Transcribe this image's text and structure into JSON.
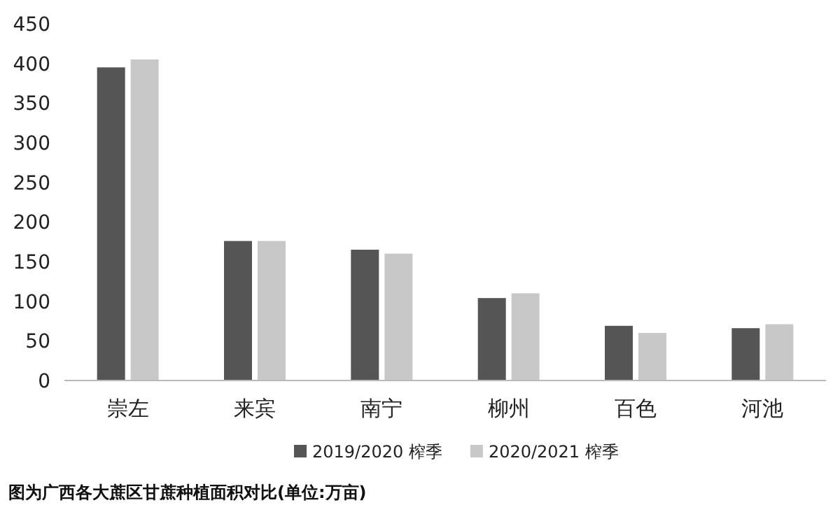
{
  "chart_data": {
    "type": "bar",
    "categories": [
      "崇左",
      "来宾",
      "南宁",
      "柳州",
      "百色",
      "河池"
    ],
    "series": [
      {
        "name": "2019/2020 榨季",
        "color": "#555555",
        "values": [
          395,
          176,
          165,
          104,
          69,
          66
        ]
      },
      {
        "name": "2020/2021 榨季",
        "color": "#c8c8c8",
        "values": [
          405,
          176,
          160,
          110,
          60,
          71
        ]
      }
    ],
    "ylim": [
      0,
      450
    ],
    "yticks": [
      0,
      50,
      100,
      150,
      200,
      250,
      300,
      350,
      400,
      450
    ],
    "grid": false,
    "legend": "bottom",
    "annotations": [
      "图为广西各大蔗区甘蔗种植面积对比(单位:万亩)"
    ]
  }
}
